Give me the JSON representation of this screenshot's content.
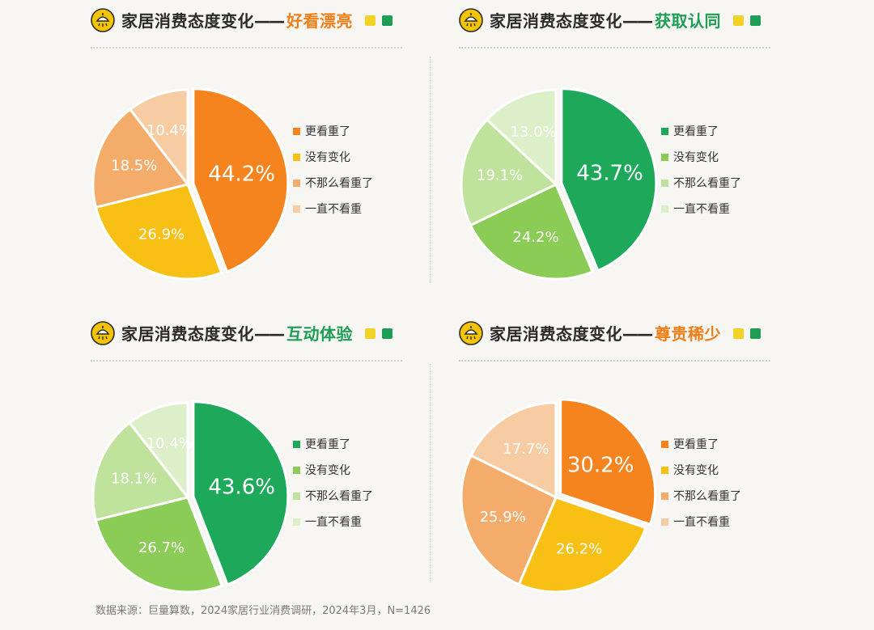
{
  "title_prefix": "家居消费态度变化",
  "title_dash": "——",
  "legend_labels": [
    "更看重了",
    "没有变化",
    "不那么看重了",
    "一直不看重"
  ],
  "palettes": {
    "orange": [
      "#f5841f",
      "#f8bf14",
      "#f4ac6a",
      "#f8cca2"
    ],
    "green": [
      "#1ea95a",
      "#8acc55",
      "#bfe39d",
      "#dcefc8"
    ]
  },
  "header_swatches": [
    "#f3d226",
    "#1e9e55"
  ],
  "charts": [
    {
      "title": "好看漂亮",
      "title_color": "#f07e16",
      "palette": "orange",
      "chart_data": {
        "type": "pie",
        "labels": [
          "更看重了",
          "没有变化",
          "不那么看重了",
          "一直不看重"
        ],
        "values": [
          44.2,
          26.9,
          18.5,
          10.4
        ],
        "value_labels": [
          "44.2%",
          "26.9%",
          "18.5%",
          "10.4%"
        ]
      }
    },
    {
      "title": "获取认同",
      "title_color": "#1e9e55",
      "palette": "green",
      "chart_data": {
        "type": "pie",
        "labels": [
          "更看重了",
          "没有变化",
          "不那么看重了",
          "一直不看重"
        ],
        "values": [
          43.7,
          24.2,
          19.1,
          13.0
        ],
        "value_labels": [
          "43.7%",
          "24.2%",
          "19.1%",
          "13.0%"
        ]
      }
    },
    {
      "title": "互动体验",
      "title_color": "#1e9e55",
      "palette": "green",
      "chart_data": {
        "type": "pie",
        "labels": [
          "更看重了",
          "没有变化",
          "不那么看重了",
          "一直不看重"
        ],
        "values": [
          43.6,
          26.7,
          18.1,
          10.4
        ],
        "value_labels": [
          "43.6%",
          "26.7%",
          "18.1%",
          "10.4%"
        ]
      }
    },
    {
      "title": "尊贵稀少",
      "title_color": "#f07e16",
      "palette": "orange",
      "chart_data": {
        "type": "pie",
        "labels": [
          "更看重了",
          "没有变化",
          "不那么看重了",
          "一直不看重"
        ],
        "values": [
          30.2,
          26.2,
          25.9,
          17.7
        ],
        "value_labels": [
          "30.2%",
          "26.2%",
          "25.9%",
          "17.7%"
        ]
      }
    }
  ],
  "source": "数据来源：巨量算数，2024家居行业消费调研，2024年3月，N=1426"
}
